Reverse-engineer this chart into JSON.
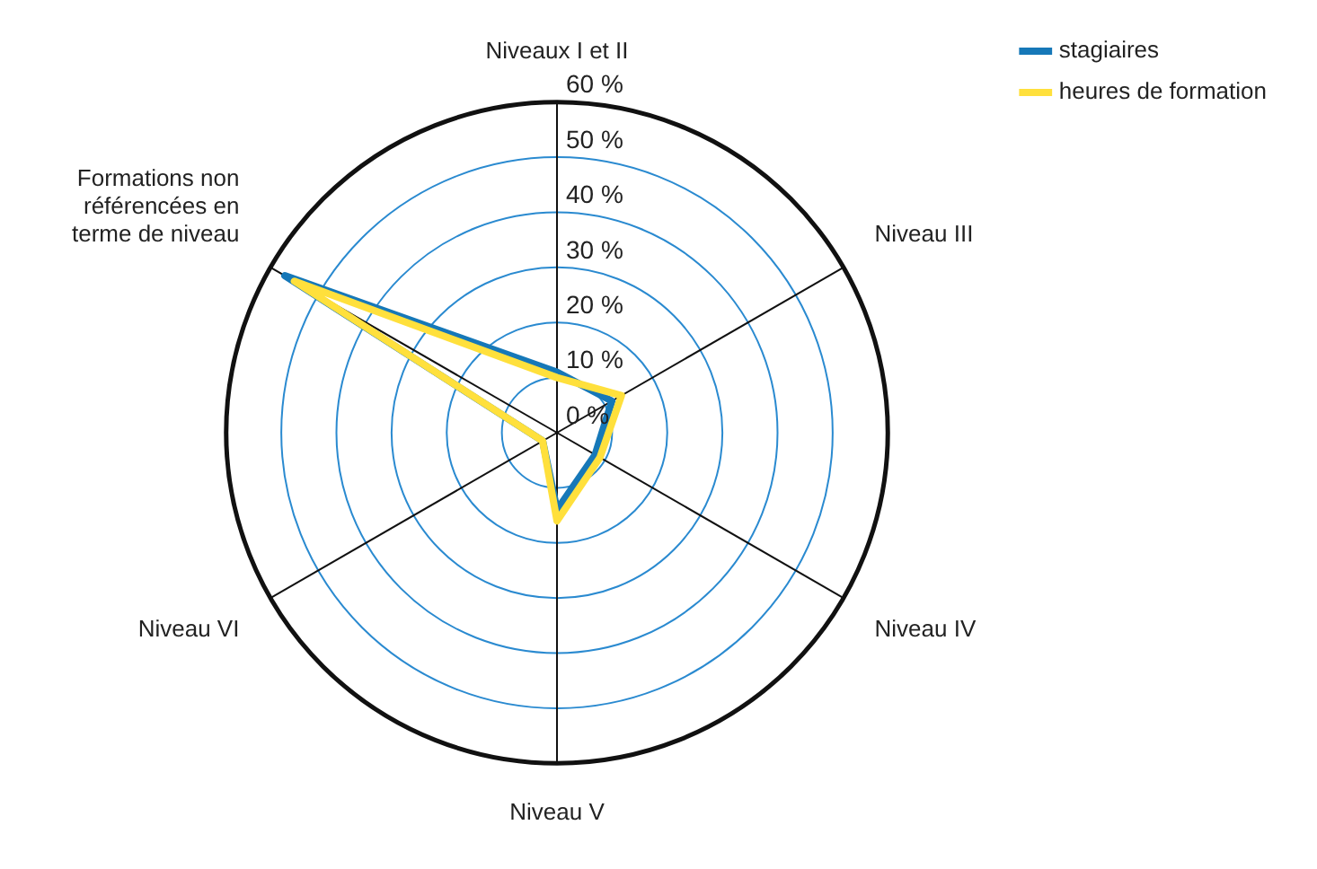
{
  "chart_data": {
    "type": "radar",
    "categories": [
      "Niveaux I et II",
      "Niveau III",
      "Niveau IV",
      "Niveau V",
      "Niveau VI",
      "Formations non référencées en terme de niveau"
    ],
    "series": [
      {
        "name": "stagiaires",
        "color": "#1678b8",
        "values": [
          11,
          11.5,
          8,
          14,
          3,
          57
        ]
      },
      {
        "name": "heures de formation",
        "color": "#ffe03c",
        "values": [
          10,
          13.5,
          9,
          16,
          3,
          55
        ]
      }
    ],
    "ylim": [
      0,
      60
    ],
    "yticks": [
      {
        "value": 0,
        "label": "0 %"
      },
      {
        "value": 10,
        "label": "10 %"
      },
      {
        "value": 20,
        "label": "20 %"
      },
      {
        "value": 30,
        "label": "30 %"
      },
      {
        "value": 40,
        "label": "40 %"
      },
      {
        "value": 50,
        "label": "50 %"
      },
      {
        "value": 60,
        "label": "60 %"
      }
    ],
    "grid": true,
    "legend": "top right"
  }
}
